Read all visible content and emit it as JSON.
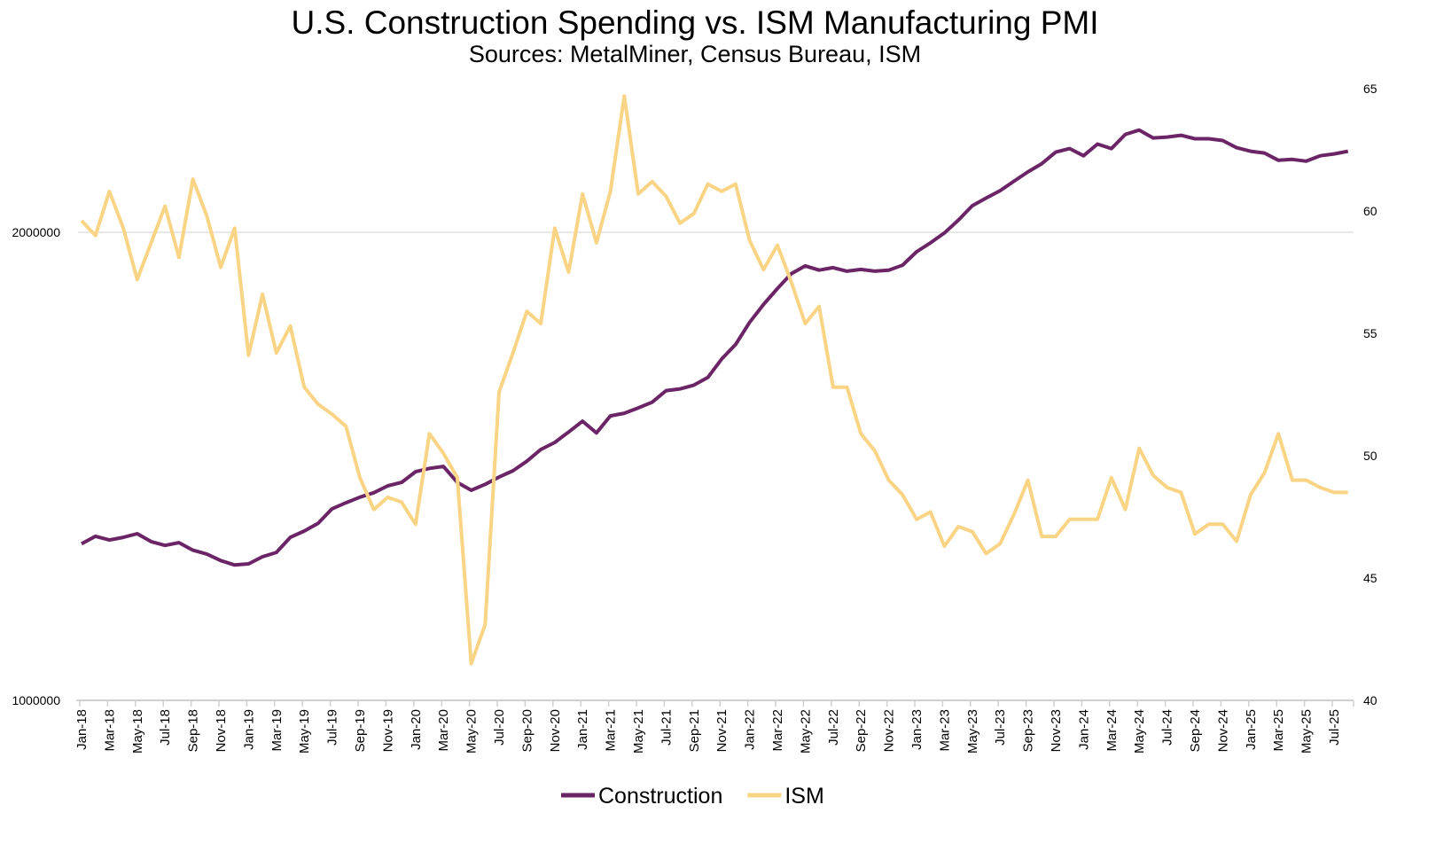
{
  "chart_data": {
    "type": "line",
    "title": "U.S. Construction Spending vs. ISM Manufacturing PMI",
    "subtitle": "Sources: MetalMiner, Census Bureau, ISM",
    "x": [
      "Jan-18",
      "Feb-18",
      "Mar-18",
      "Apr-18",
      "May-18",
      "Jun-18",
      "Jul-18",
      "Aug-18",
      "Sep-18",
      "Oct-18",
      "Nov-18",
      "Dec-18",
      "Jan-19",
      "Feb-19",
      "Mar-19",
      "Apr-19",
      "May-19",
      "Jun-19",
      "Jul-19",
      "Aug-19",
      "Sep-19",
      "Oct-19",
      "Nov-19",
      "Dec-19",
      "Jan-20",
      "Feb-20",
      "Mar-20",
      "Apr-20",
      "May-20",
      "Jun-20",
      "Jul-20",
      "Aug-20",
      "Sep-20",
      "Oct-20",
      "Nov-20",
      "Dec-20",
      "Jan-21",
      "Feb-21",
      "Mar-21",
      "Apr-21",
      "May-21",
      "Jun-21",
      "Jul-21",
      "Aug-21",
      "Sep-21",
      "Oct-21",
      "Nov-21",
      "Dec-21",
      "Jan-22",
      "Feb-22",
      "Mar-22",
      "Apr-22",
      "May-22",
      "Jun-22",
      "Jul-22",
      "Aug-22",
      "Sep-22",
      "Oct-22",
      "Nov-22",
      "Dec-22",
      "Jan-23",
      "Feb-23",
      "Mar-23",
      "Apr-23",
      "May-23",
      "Jun-23",
      "Jul-23",
      "Aug-23",
      "Sep-23",
      "Oct-23",
      "Nov-23",
      "Dec-23",
      "Jan-24",
      "Feb-24",
      "Mar-24",
      "Apr-24",
      "May-24",
      "Jun-24",
      "Jul-24",
      "Aug-24",
      "Sep-24",
      "Oct-24",
      "Nov-24",
      "Dec-24",
      "Jan-25",
      "Feb-25",
      "Mar-25",
      "Apr-25",
      "May-25",
      "Jun-25",
      "Jul-25",
      "Aug-25"
    ],
    "x_tick_labels": [
      "Jan-18",
      "Mar-18",
      "May-18",
      "Jul-18",
      "Sep-18",
      "Nov-18",
      "Jan-19",
      "Mar-19",
      "May-19",
      "Jul-19",
      "Sep-19",
      "Nov-19",
      "Jan-20",
      "Mar-20",
      "May-20",
      "Jul-20",
      "Sep-20",
      "Nov-20",
      "Jan-21",
      "Mar-21",
      "May-21",
      "Jul-21",
      "Sep-21",
      "Nov-21",
      "Jan-22",
      "Mar-22",
      "May-22",
      "Jul-22",
      "Sep-22",
      "Nov-22",
      "Jan-23",
      "Mar-23",
      "May-23",
      "Jul-23",
      "Sep-23",
      "Nov-23",
      "Jan-24",
      "Mar-24",
      "May-24",
      "Jul-24",
      "Sep-24",
      "Nov-24",
      "Jan-25",
      "Mar-25",
      "May-25",
      "Jul-25"
    ],
    "y_left": {
      "scale": "log",
      "range": [
        1000000,
        2474000
      ],
      "tick_labels": [
        "1000000",
        "2000000"
      ],
      "ticks": [
        1000000,
        2000000
      ]
    },
    "y_right": {
      "scale": "linear",
      "range": [
        40,
        65
      ],
      "ticks": [
        40,
        45,
        50,
        55,
        60,
        65
      ],
      "tick_labels": [
        "40",
        "45",
        "50",
        "55",
        "60",
        "65"
      ]
    },
    "grid": "horizontal line at 2000000 only",
    "legend_position": "bottom",
    "series": [
      {
        "name": "Construction",
        "axis": "left",
        "color": "#6b2466",
        "values": [
          1261000,
          1275000,
          1268000,
          1273000,
          1280000,
          1265000,
          1258000,
          1263000,
          1249000,
          1242000,
          1230000,
          1222000,
          1224000,
          1237000,
          1245000,
          1273000,
          1285000,
          1300000,
          1328000,
          1340000,
          1351000,
          1360000,
          1374000,
          1381000,
          1403000,
          1410000,
          1414000,
          1381000,
          1365000,
          1377000,
          1392000,
          1405000,
          1425000,
          1450000,
          1465000,
          1488000,
          1512000,
          1486000,
          1524000,
          1530000,
          1542000,
          1555000,
          1582000,
          1586000,
          1595000,
          1613000,
          1658000,
          1694000,
          1750000,
          1797000,
          1840000,
          1881000,
          1903000,
          1891000,
          1898000,
          1888000,
          1893000,
          1888000,
          1891000,
          1905000,
          1943000,
          1969000,
          1998000,
          2036000,
          2080000,
          2104000,
          2127000,
          2157000,
          2187000,
          2214000,
          2252000,
          2264000,
          2240000,
          2279000,
          2264000,
          2312000,
          2327000,
          2300000,
          2303000,
          2309000,
          2297000,
          2297000,
          2291000,
          2267000,
          2255000,
          2249000,
          2225000,
          2228000,
          2222000,
          2240000,
          2246000,
          2255000
        ]
      },
      {
        "name": "ISM",
        "axis": "right",
        "color": "#fad485",
        "values": [
          59.6,
          59.0,
          60.8,
          59.3,
          57.2,
          58.7,
          60.2,
          58.1,
          61.3,
          59.8,
          57.7,
          59.3,
          54.1,
          56.6,
          54.2,
          55.3,
          52.8,
          52.1,
          51.7,
          51.2,
          49.1,
          47.8,
          48.3,
          48.1,
          47.2,
          50.9,
          50.1,
          49.1,
          41.5,
          43.1,
          52.6,
          54.2,
          55.9,
          55.4,
          59.3,
          57.5,
          60.7,
          58.7,
          60.8,
          64.7,
          60.7,
          61.2,
          60.6,
          59.5,
          59.9,
          61.1,
          60.8,
          61.1,
          58.8,
          57.6,
          58.6,
          57.1,
          55.4,
          56.1,
          52.8,
          52.8,
          50.9,
          50.2,
          49.0,
          48.4,
          47.4,
          47.7,
          46.3,
          47.1,
          46.9,
          46.0,
          46.4,
          47.6,
          49.0,
          46.7,
          46.7,
          47.4,
          47.4,
          47.4,
          49.1,
          47.8,
          50.3,
          49.2,
          48.7,
          48.5,
          46.8,
          47.2,
          47.2,
          46.5,
          48.4,
          49.3,
          50.9,
          49.0,
          49.0,
          48.7,
          48.5,
          48.5
        ]
      }
    ]
  }
}
